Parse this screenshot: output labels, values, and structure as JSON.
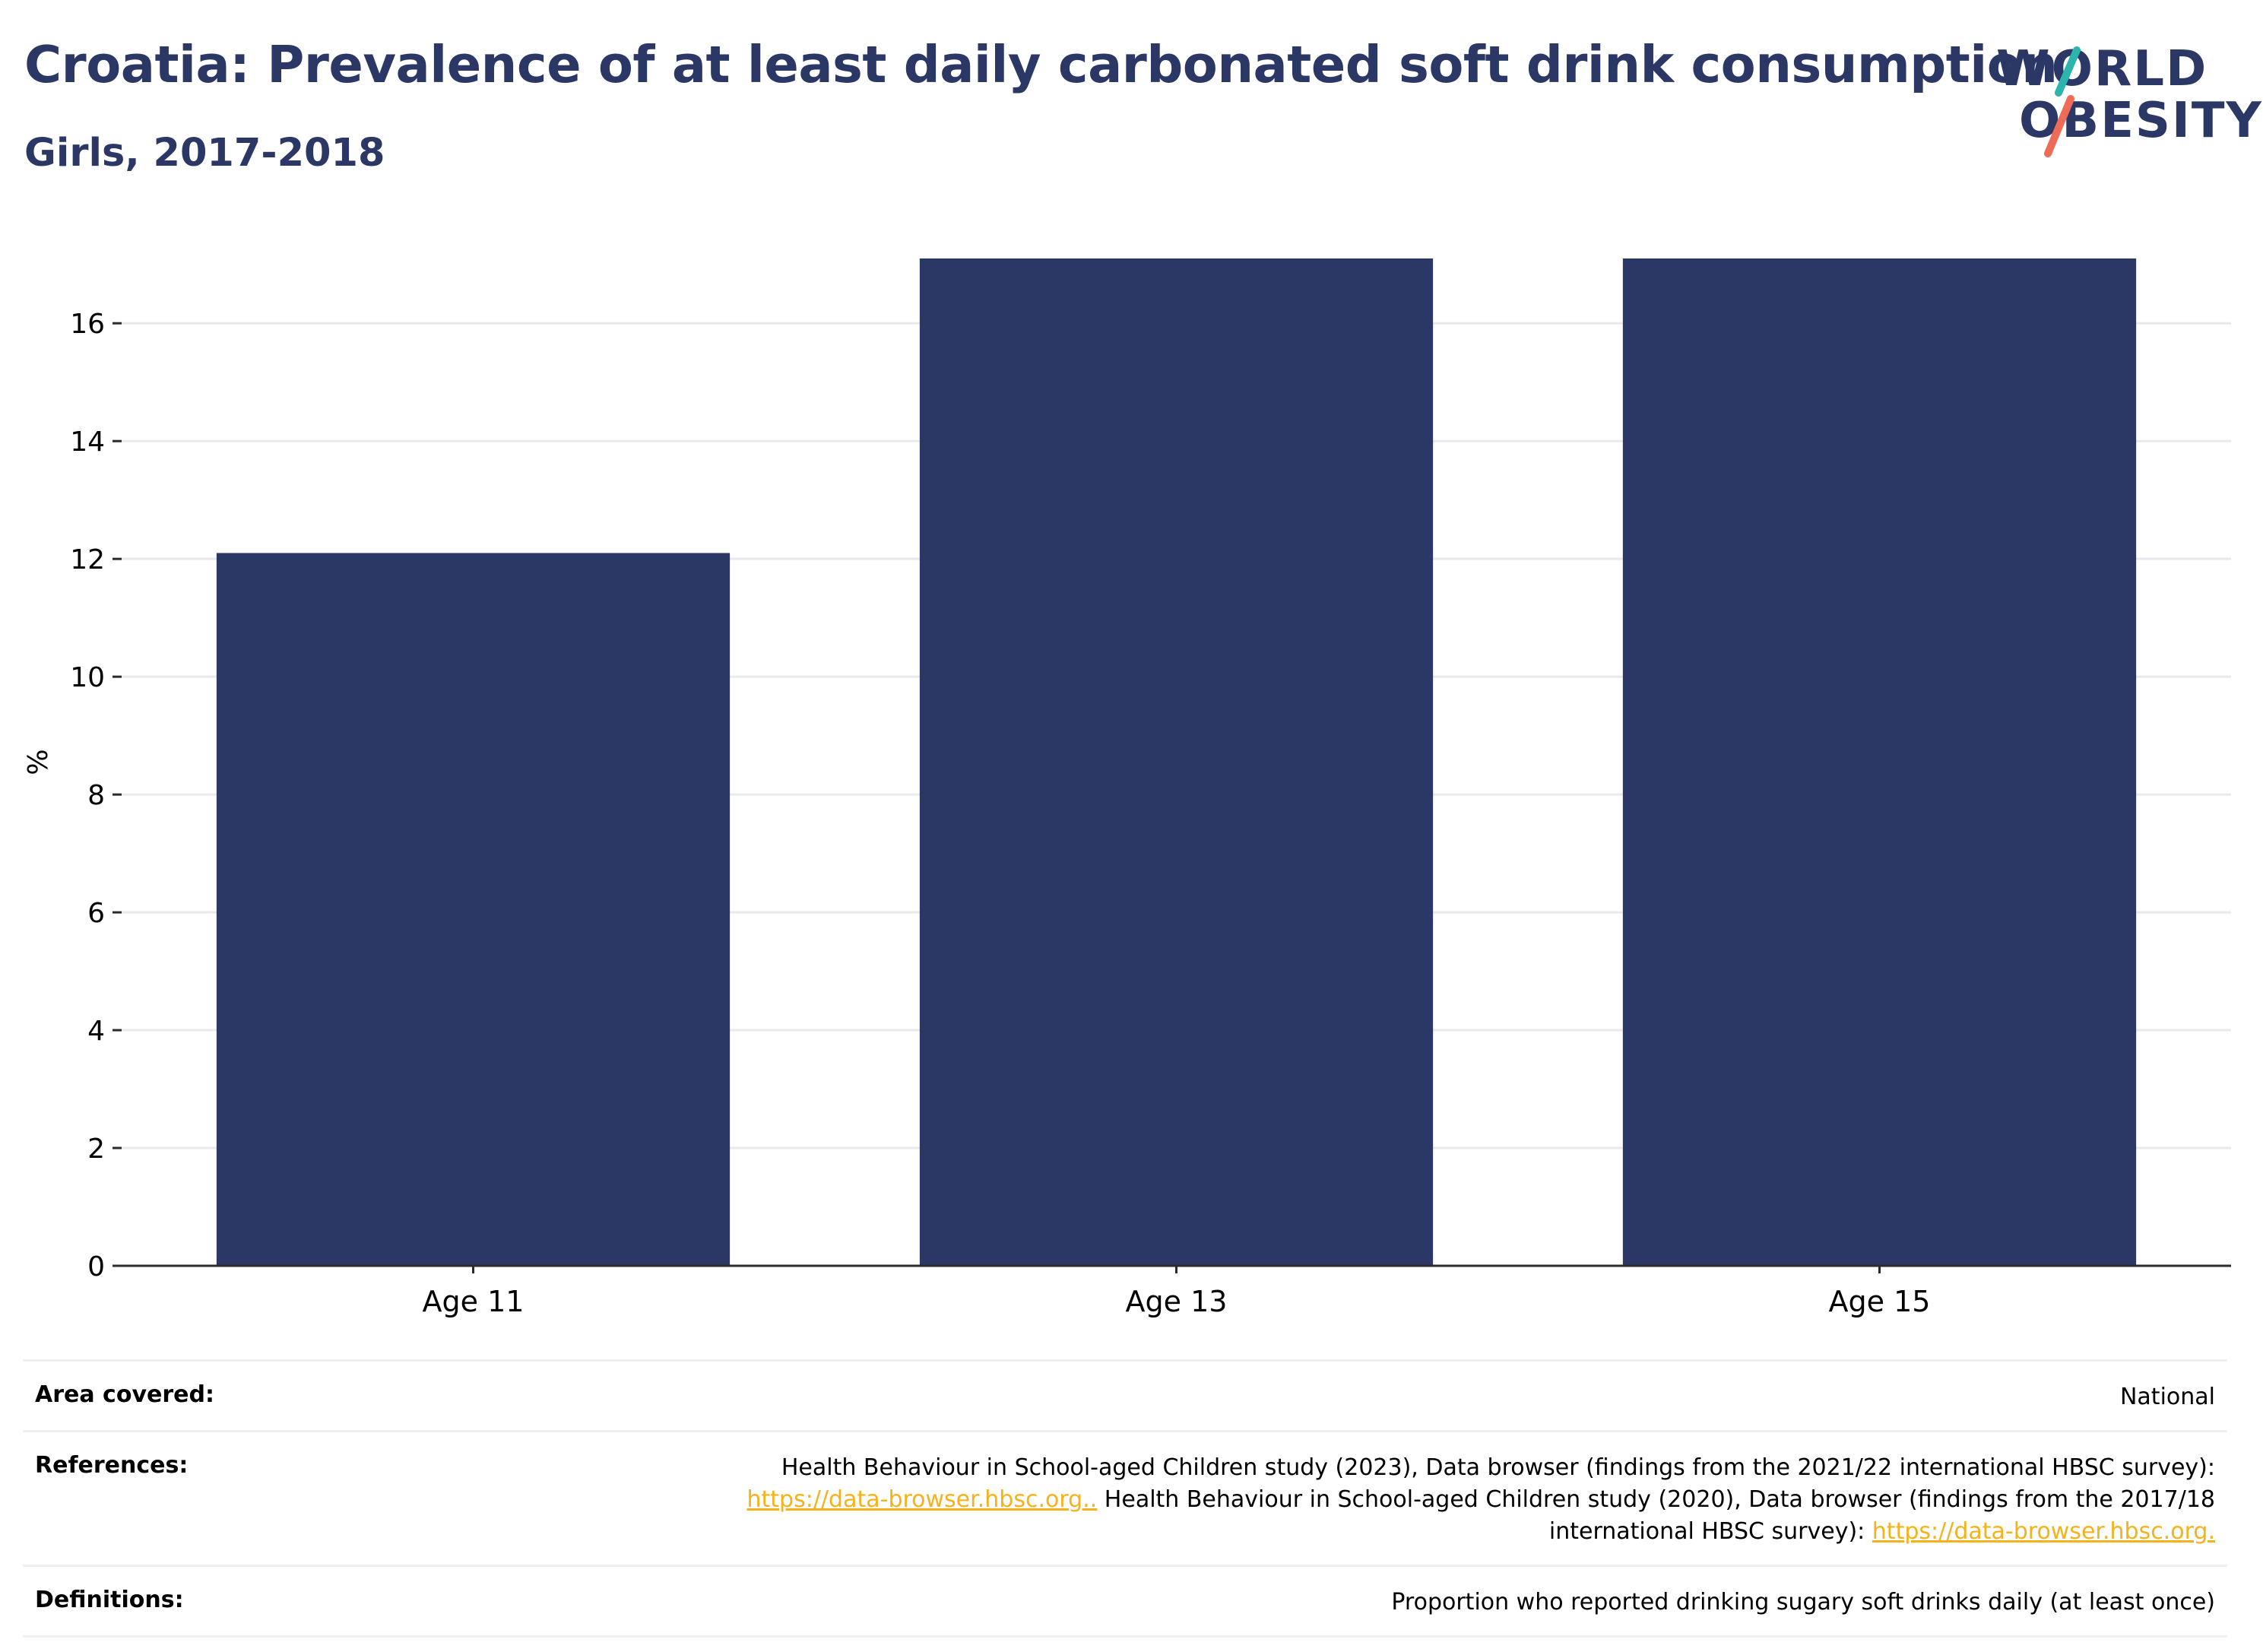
{
  "header": {
    "title": "Croatia: Prevalence of at least daily carbonated soft drink consumption",
    "subtitle": "Girls, 2017-2018"
  },
  "logo": {
    "line1": "WORLD",
    "line2": "OBESITY",
    "accent_teal": "#2cb5ad",
    "accent_coral": "#ee6b57"
  },
  "chart_data": {
    "type": "bar",
    "categories": [
      "Age 11",
      "Age 13",
      "Age 15"
    ],
    "values": [
      12.1,
      17.1,
      17.1
    ],
    "ylabel": "%",
    "ylim": [
      0,
      17.1
    ],
    "yticks": [
      0,
      2,
      4,
      6,
      8,
      10,
      12,
      14,
      16
    ],
    "grid": true,
    "bar_color": "#2b3764"
  },
  "info": {
    "area_label": "Area covered:",
    "area_value": "National",
    "references_label": "References:",
    "ref_text_1": "Health Behaviour in School-aged Children study (2023), Data browser (findings from the 2021/22 international HBSC survey):",
    "ref_link_1": "https://data-browser.hbsc.org..",
    "ref_text_2": " Health Behaviour in School-aged Children study (2020), Data browser (findings from the 2017/18",
    "ref_text_3": "international HBSC survey): ",
    "ref_link_2": "https://data-browser.hbsc.org.",
    "definitions_label": "Definitions:",
    "definitions_value": "Proportion who reported drinking sugary soft drinks daily (at least once)"
  }
}
